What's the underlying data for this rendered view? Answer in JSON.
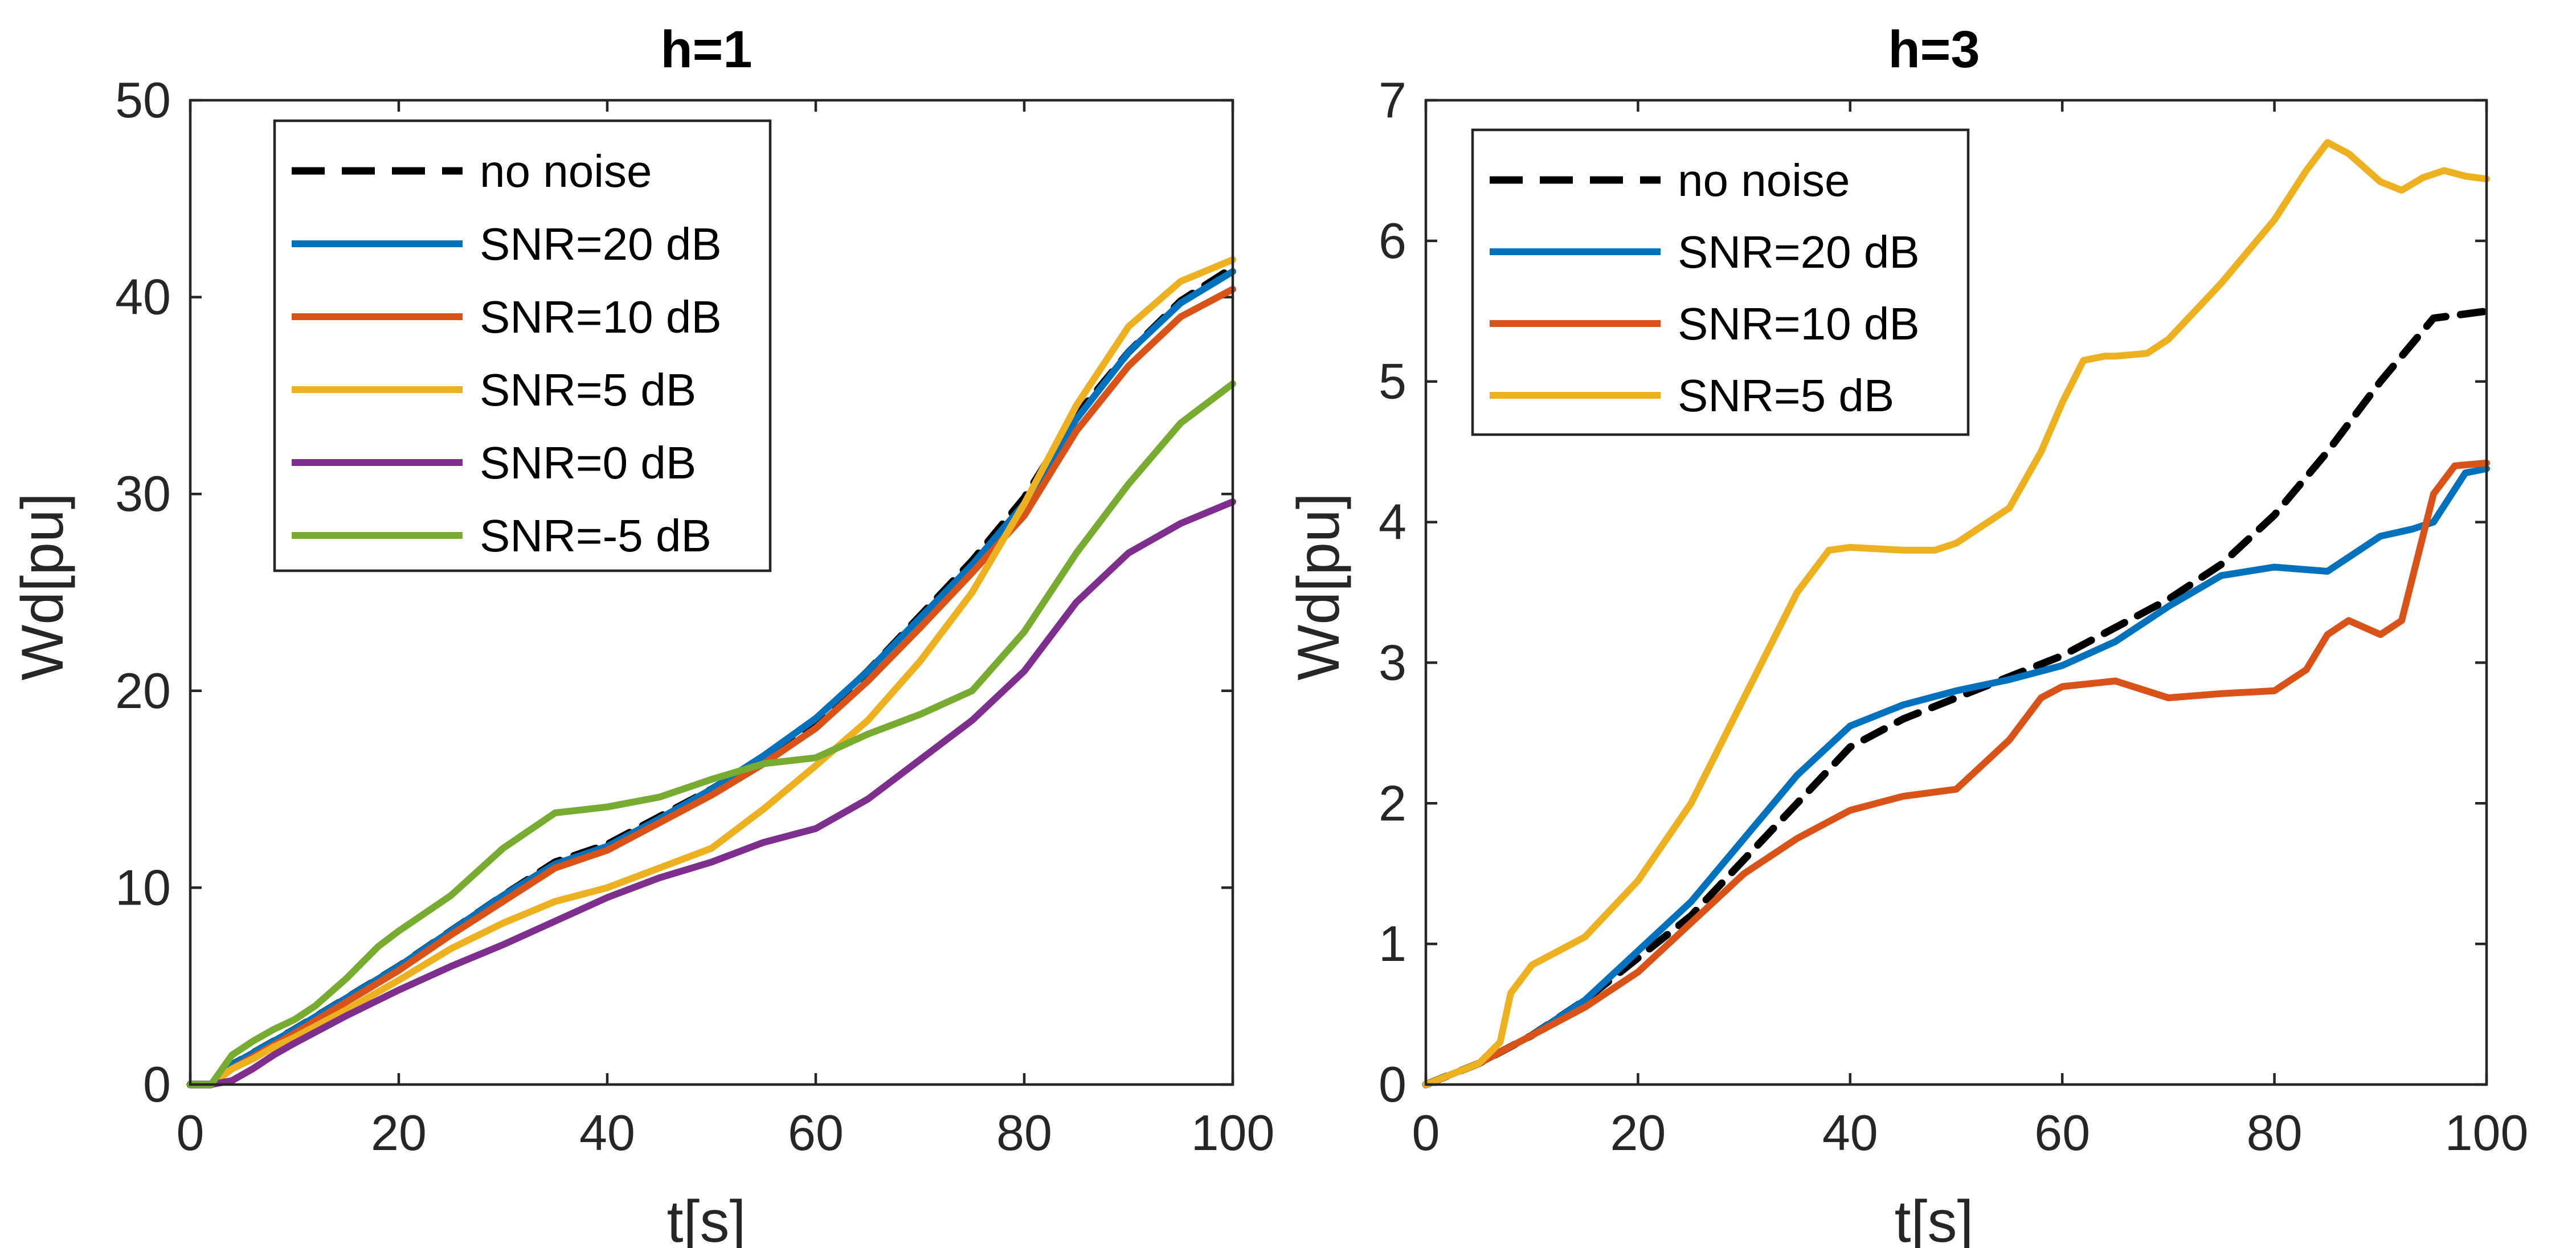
{
  "chart_data": [
    {
      "type": "line",
      "title": "h=1",
      "xlabel": "t[s]",
      "ylabel": "Wd[pu]",
      "xlim": [
        0,
        100
      ],
      "ylim": [
        0,
        50
      ],
      "xticks": [
        "0",
        "20",
        "40",
        "60",
        "80",
        "100"
      ],
      "yticks": [
        "0",
        "10",
        "20",
        "30",
        "40",
        "50"
      ],
      "legend_position": "top-left",
      "series": [
        {
          "name": "no noise",
          "color": "#000000",
          "dash": true,
          "x": [
            0,
            2,
            4,
            6,
            8,
            10,
            15,
            20,
            25,
            30,
            35,
            40,
            45,
            50,
            55,
            60,
            65,
            70,
            75,
            80,
            85,
            90,
            95,
            100
          ],
          "y": [
            0,
            0,
            1.0,
            1.6,
            2.2,
            2.8,
            4.4,
            6.0,
            7.8,
            9.6,
            11.3,
            12.2,
            13.6,
            15.0,
            16.6,
            18.5,
            21.0,
            23.8,
            26.6,
            29.8,
            34.0,
            37.2,
            39.8,
            41.5
          ]
        },
        {
          "name": "SNR=20 dB",
          "color": "#0072BD",
          "dash": false,
          "x": [
            0,
            2,
            4,
            6,
            8,
            10,
            15,
            20,
            25,
            30,
            35,
            40,
            45,
            50,
            55,
            60,
            65,
            70,
            75,
            80,
            85,
            90,
            95,
            100
          ],
          "y": [
            0,
            0,
            1.0,
            1.6,
            2.2,
            2.8,
            4.4,
            6.0,
            7.8,
            9.6,
            11.2,
            12.1,
            13.5,
            15.0,
            16.7,
            18.6,
            21.0,
            23.7,
            26.4,
            29.5,
            33.8,
            37.2,
            39.7,
            41.3
          ]
        },
        {
          "name": "SNR=10 dB",
          "color": "#D95319",
          "dash": false,
          "x": [
            0,
            2,
            4,
            6,
            8,
            10,
            15,
            20,
            25,
            30,
            35,
            40,
            45,
            50,
            55,
            60,
            65,
            70,
            75,
            80,
            85,
            90,
            95,
            100
          ],
          "y": [
            0,
            0,
            0.8,
            1.4,
            2.0,
            2.6,
            4.2,
            5.8,
            7.6,
            9.3,
            11.0,
            11.9,
            13.3,
            14.7,
            16.3,
            18.1,
            20.5,
            23.2,
            26.0,
            28.9,
            33.2,
            36.5,
            39.0,
            40.4
          ]
        },
        {
          "name": "SNR=5 dB",
          "color": "#EDB120",
          "dash": false,
          "x": [
            0,
            2,
            4,
            6,
            8,
            10,
            15,
            20,
            25,
            30,
            35,
            40,
            45,
            50,
            55,
            60,
            65,
            70,
            75,
            80,
            85,
            90,
            95,
            100
          ],
          "y": [
            0,
            0,
            0.8,
            1.3,
            1.9,
            2.4,
            3.8,
            5.3,
            6.9,
            8.2,
            9.3,
            10.0,
            11.0,
            12.0,
            14.0,
            16.2,
            18.5,
            21.5,
            25.0,
            29.5,
            34.5,
            38.5,
            40.8,
            41.9
          ]
        },
        {
          "name": "SNR=0 dB",
          "color": "#7E2F8E",
          "dash": false,
          "x": [
            0,
            2,
            4,
            6,
            8,
            10,
            15,
            20,
            25,
            30,
            35,
            40,
            45,
            50,
            55,
            60,
            65,
            70,
            75,
            80,
            85,
            90,
            95,
            100
          ],
          "y": [
            0,
            0,
            0.2,
            0.8,
            1.5,
            2.1,
            3.5,
            4.8,
            6.0,
            7.1,
            8.3,
            9.5,
            10.5,
            11.3,
            12.3,
            13.0,
            14.5,
            16.5,
            18.5,
            21.0,
            24.5,
            27.0,
            28.5,
            29.6
          ]
        },
        {
          "name": "SNR=-5 dB",
          "color": "#77AC30",
          "dash": false,
          "x": [
            0,
            2,
            4,
            6,
            8,
            10,
            12,
            15,
            18,
            20,
            25,
            30,
            35,
            40,
            45,
            50,
            55,
            60,
            65,
            70,
            75,
            80,
            85,
            90,
            95,
            100
          ],
          "y": [
            0,
            0,
            1.5,
            2.2,
            2.8,
            3.3,
            4.0,
            5.4,
            7.0,
            7.8,
            9.6,
            12.0,
            13.8,
            14.1,
            14.6,
            15.5,
            16.3,
            16.6,
            17.8,
            18.8,
            20.0,
            23.0,
            27.0,
            30.5,
            33.6,
            35.6
          ]
        }
      ]
    },
    {
      "type": "line",
      "title": "h=3",
      "xlabel": "t[s]",
      "ylabel": "Wd[pu]",
      "xlim": [
        0,
        100
      ],
      "ylim": [
        0,
        7
      ],
      "xticks": [
        "0",
        "20",
        "40",
        "60",
        "80",
        "100"
      ],
      "yticks": [
        "0",
        "1",
        "2",
        "3",
        "4",
        "5",
        "6",
        "7"
      ],
      "legend_position": "top-left",
      "series": [
        {
          "name": "no noise",
          "color": "#000000",
          "dash": true,
          "x": [
            0,
            5,
            10,
            15,
            20,
            25,
            30,
            35,
            40,
            45,
            50,
            55,
            60,
            65,
            70,
            75,
            80,
            85,
            90,
            95,
            100
          ],
          "y": [
            0,
            0.15,
            0.35,
            0.6,
            0.9,
            1.2,
            1.6,
            2.0,
            2.4,
            2.6,
            2.75,
            2.9,
            3.05,
            3.25,
            3.45,
            3.7,
            4.05,
            4.5,
            5.0,
            5.45,
            5.5
          ]
        },
        {
          "name": "SNR=20 dB",
          "color": "#0072BD",
          "dash": false,
          "x": [
            0,
            5,
            10,
            15,
            20,
            25,
            30,
            35,
            40,
            45,
            50,
            55,
            60,
            65,
            70,
            75,
            80,
            85,
            90,
            93,
            95,
            98,
            100
          ],
          "y": [
            0,
            0.15,
            0.35,
            0.6,
            0.95,
            1.3,
            1.75,
            2.2,
            2.55,
            2.7,
            2.8,
            2.88,
            2.98,
            3.15,
            3.4,
            3.62,
            3.68,
            3.65,
            3.9,
            3.95,
            4.0,
            4.35,
            4.38
          ]
        },
        {
          "name": "SNR=10 dB",
          "color": "#D95319",
          "dash": false,
          "x": [
            0,
            5,
            10,
            15,
            20,
            25,
            30,
            35,
            40,
            45,
            50,
            55,
            58,
            60,
            65,
            70,
            75,
            80,
            83,
            85,
            87,
            90,
            92,
            95,
            97,
            100
          ],
          "y": [
            0,
            0.15,
            0.35,
            0.55,
            0.8,
            1.15,
            1.5,
            1.75,
            1.95,
            2.05,
            2.1,
            2.45,
            2.75,
            2.83,
            2.87,
            2.75,
            2.78,
            2.8,
            2.95,
            3.2,
            3.3,
            3.2,
            3.3,
            4.2,
            4.4,
            4.42
          ]
        },
        {
          "name": "SNR=5 dB",
          "color": "#EDB120",
          "dash": false,
          "x": [
            0,
            5,
            7,
            8,
            10,
            15,
            20,
            25,
            30,
            35,
            38,
            40,
            45,
            48,
            50,
            55,
            58,
            60,
            62,
            64,
            65,
            68,
            70,
            75,
            80,
            83,
            85,
            87,
            90,
            92,
            94,
            96,
            98,
            100
          ],
          "y": [
            0,
            0.15,
            0.3,
            0.65,
            0.85,
            1.05,
            1.45,
            2.0,
            2.75,
            3.5,
            3.8,
            3.82,
            3.8,
            3.8,
            3.85,
            4.1,
            4.5,
            4.85,
            5.15,
            5.18,
            5.18,
            5.2,
            5.3,
            5.7,
            6.15,
            6.5,
            6.7,
            6.62,
            6.42,
            6.36,
            6.45,
            6.5,
            6.46,
            6.44
          ]
        }
      ]
    }
  ]
}
